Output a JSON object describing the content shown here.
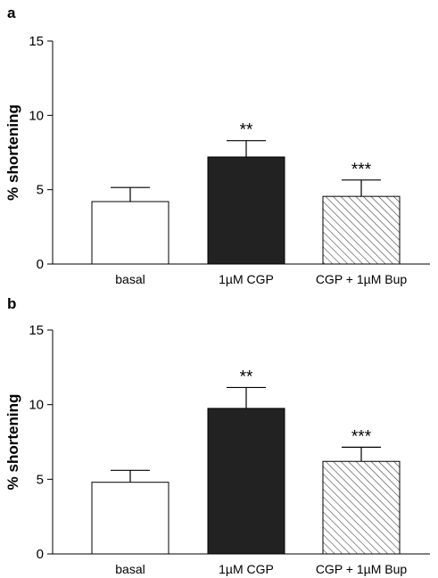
{
  "chart_data": [
    {
      "type": "bar",
      "panel": "a",
      "ylabel": "% shortening",
      "ylim": [
        0,
        15
      ],
      "yticks": [
        0,
        5,
        10,
        15
      ],
      "categories": [
        "basal",
        "1µM CGP",
        "CGP + 1µM Bup"
      ],
      "values": [
        4.2,
        7.2,
        4.55
      ],
      "errors": [
        0.95,
        1.1,
        1.1
      ],
      "significance": [
        "",
        "**",
        "***"
      ],
      "fills": [
        "white",
        "#222222",
        "hatched"
      ]
    },
    {
      "type": "bar",
      "panel": "b",
      "ylabel": "% shortening",
      "ylim": [
        0,
        15
      ],
      "yticks": [
        0,
        5,
        10,
        15
      ],
      "categories": [
        "basal",
        "1µM CGP",
        "CGP + 1µM Bup"
      ],
      "values": [
        4.8,
        9.75,
        6.2
      ],
      "errors": [
        0.8,
        1.4,
        0.95
      ],
      "significance": [
        "",
        "**",
        "***"
      ],
      "fills": [
        "white",
        "#222222",
        "hatched"
      ]
    }
  ]
}
